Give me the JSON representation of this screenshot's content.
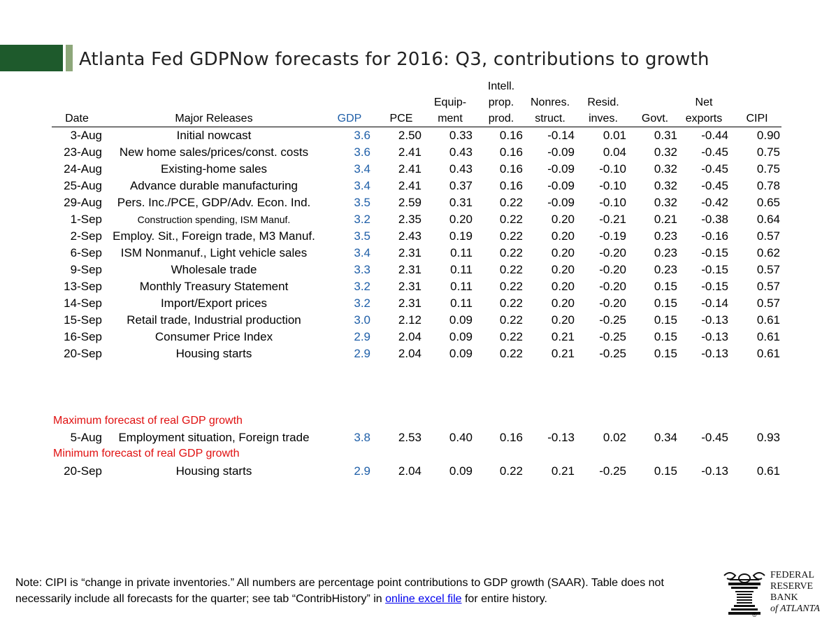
{
  "title": "Atlanta Fed GDPNow forecasts for 2016: Q3, contributions to growth",
  "colors": {
    "brand_dark": "#1e5a2c",
    "brand_light": "#8da77a",
    "gdp_blue": "#1f5fa8",
    "note_red": "#e01010"
  },
  "chart_data": {
    "type": "table",
    "columns": [
      {
        "key": "date",
        "label": "Date"
      },
      {
        "key": "release",
        "label": "Major Releases"
      },
      {
        "key": "gdp",
        "label": "GDP"
      },
      {
        "key": "pce",
        "label": "PCE"
      },
      {
        "key": "equip",
        "label": "Equip-\nment"
      },
      {
        "key": "ipp",
        "label": "Intell.\nprop.\nprod."
      },
      {
        "key": "nonres",
        "label": "Nonres.\nstruct."
      },
      {
        "key": "resid",
        "label": "Resid.\ninves."
      },
      {
        "key": "govt",
        "label": "Govt."
      },
      {
        "key": "netexp",
        "label": "Net\nexports"
      },
      {
        "key": "cipi",
        "label": "CIPI"
      }
    ],
    "rows": [
      {
        "date": "3-Aug",
        "release": "Initial nowcast",
        "gdp": "3.6",
        "pce": "2.50",
        "equip": "0.33",
        "ipp": "0.16",
        "nonres": "-0.14",
        "resid": "0.01",
        "govt": "0.31",
        "netexp": "-0.44",
        "cipi": "0.90"
      },
      {
        "date": "23-Aug",
        "release": "New home sales/prices/const. costs",
        "gdp": "3.6",
        "pce": "2.41",
        "equip": "0.43",
        "ipp": "0.16",
        "nonres": "-0.09",
        "resid": "0.04",
        "govt": "0.32",
        "netexp": "-0.45",
        "cipi": "0.75"
      },
      {
        "date": "24-Aug",
        "release": "Existing-home sales",
        "gdp": "3.4",
        "pce": "2.41",
        "equip": "0.43",
        "ipp": "0.16",
        "nonres": "-0.09",
        "resid": "-0.10",
        "govt": "0.32",
        "netexp": "-0.45",
        "cipi": "0.75"
      },
      {
        "date": "25-Aug",
        "release": "Advance durable manufacturing",
        "gdp": "3.4",
        "pce": "2.41",
        "equip": "0.37",
        "ipp": "0.16",
        "nonres": "-0.09",
        "resid": "-0.10",
        "govt": "0.32",
        "netexp": "-0.45",
        "cipi": "0.78"
      },
      {
        "date": "29-Aug",
        "release": "Pers. Inc./PCE, GDP/Adv. Econ. Ind.",
        "gdp": "3.5",
        "pce": "2.59",
        "equip": "0.31",
        "ipp": "0.22",
        "nonres": "-0.09",
        "resid": "-0.10",
        "govt": "0.32",
        "netexp": "-0.42",
        "cipi": "0.65"
      },
      {
        "date": "1-Sep",
        "release": "Construction spending, ISM Manuf.",
        "gdp": "3.2",
        "pce": "2.35",
        "equip": "0.20",
        "ipp": "0.22",
        "nonres": "0.20",
        "resid": "-0.21",
        "govt": "0.21",
        "netexp": "-0.38",
        "cipi": "0.64",
        "small": true
      },
      {
        "date": "2-Sep",
        "release": "Employ. Sit., Foreign trade, M3 Manuf.",
        "gdp": "3.5",
        "pce": "2.43",
        "equip": "0.19",
        "ipp": "0.22",
        "nonres": "0.20",
        "resid": "-0.19",
        "govt": "0.23",
        "netexp": "-0.16",
        "cipi": "0.57"
      },
      {
        "date": "6-Sep",
        "release": "ISM Nonmanuf., Light vehicle sales",
        "gdp": "3.4",
        "pce": "2.31",
        "equip": "0.11",
        "ipp": "0.22",
        "nonres": "0.20",
        "resid": "-0.20",
        "govt": "0.23",
        "netexp": "-0.15",
        "cipi": "0.62"
      },
      {
        "date": "9-Sep",
        "release": "Wholesale trade",
        "gdp": "3.3",
        "pce": "2.31",
        "equip": "0.11",
        "ipp": "0.22",
        "nonres": "0.20",
        "resid": "-0.20",
        "govt": "0.23",
        "netexp": "-0.15",
        "cipi": "0.57"
      },
      {
        "date": "13-Sep",
        "release": "Monthly Treasury Statement",
        "gdp": "3.2",
        "pce": "2.31",
        "equip": "0.11",
        "ipp": "0.22",
        "nonres": "0.20",
        "resid": "-0.20",
        "govt": "0.15",
        "netexp": "-0.15",
        "cipi": "0.57"
      },
      {
        "date": "14-Sep",
        "release": "Import/Export prices",
        "gdp": "3.2",
        "pce": "2.31",
        "equip": "0.11",
        "ipp": "0.22",
        "nonres": "0.20",
        "resid": "-0.20",
        "govt": "0.15",
        "netexp": "-0.14",
        "cipi": "0.57"
      },
      {
        "date": "15-Sep",
        "release": "Retail trade, Industrial production",
        "gdp": "3.0",
        "pce": "2.12",
        "equip": "0.09",
        "ipp": "0.22",
        "nonres": "0.20",
        "resid": "-0.25",
        "govt": "0.15",
        "netexp": "-0.13",
        "cipi": "0.61"
      },
      {
        "date": "16-Sep",
        "release": "Consumer Price Index",
        "gdp": "2.9",
        "pce": "2.04",
        "equip": "0.09",
        "ipp": "0.22",
        "nonres": "0.21",
        "resid": "-0.25",
        "govt": "0.15",
        "netexp": "-0.13",
        "cipi": "0.61"
      },
      {
        "date": "20-Sep",
        "release": "Housing starts",
        "gdp": "2.9",
        "pce": "2.04",
        "equip": "0.09",
        "ipp": "0.22",
        "nonres": "0.21",
        "resid": "-0.25",
        "govt": "0.15",
        "netexp": "-0.13",
        "cipi": "0.61"
      }
    ],
    "max_label": "Maximum forecast of real GDP growth",
    "max_row": {
      "date": "5-Aug",
      "release": "Employment situation, Foreign trade",
      "gdp": "3.8",
      "pce": "2.53",
      "equip": "0.40",
      "ipp": "0.16",
      "nonres": "-0.13",
      "resid": "0.02",
      "govt": "0.34",
      "netexp": "-0.45",
      "cipi": "0.93"
    },
    "min_label": "Minimum forecast of real GDP growth",
    "min_row": {
      "date": "20-Sep",
      "release": "Housing starts",
      "gdp": "2.9",
      "pce": "2.04",
      "equip": "0.09",
      "ipp": "0.22",
      "nonres": "0.21",
      "resid": "-0.25",
      "govt": "0.15",
      "netexp": "-0.13",
      "cipi": "0.61"
    }
  },
  "note": {
    "text_before": "Note:  CIPI is “change in private inventories.”  All numbers are percentage point contributions to GDP growth (SAAR). Table does not necessarily include all forecasts for the quarter; see tab “ContribHistory” in ",
    "link_text": "online excel file",
    "text_after": " for entire history."
  },
  "logo": {
    "line1": "FEDERAL",
    "line2": "RESERVE",
    "line3": "BANK",
    "line4": "of ATLANTA",
    "reg_mark": "®"
  }
}
